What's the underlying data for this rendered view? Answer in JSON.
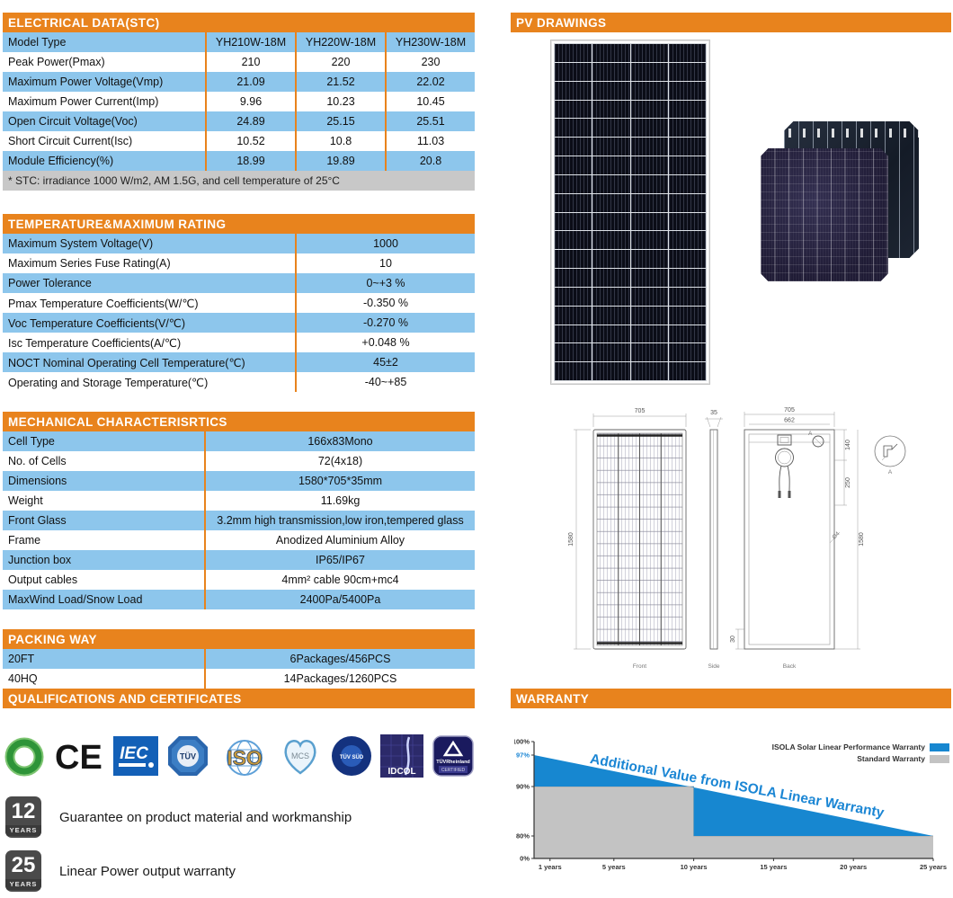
{
  "sections": {
    "electrical": {
      "title": "ELECTRICAL DATA(STC)",
      "rows": [
        [
          "Model Type",
          "YH210W-18M",
          "YH220W-18M",
          "YH230W-18M"
        ],
        [
          "Peak Power(Pmax)",
          "210",
          "220",
          "230"
        ],
        [
          "Maximum Power Voltage(Vmp)",
          "21.09",
          "21.52",
          "22.02"
        ],
        [
          "Maximum Power Current(Imp)",
          "9.96",
          "10.23",
          "10.45"
        ],
        [
          "Open Circuit Voltage(Voc)",
          "24.89",
          "25.15",
          "25.51"
        ],
        [
          "Short Circuit Current(Isc)",
          "10.52",
          "10.8",
          "11.03"
        ],
        [
          "Module Efficiency(%)",
          "18.99",
          "19.89",
          "20.8"
        ]
      ],
      "footnote": "* STC:  irradiance 1000 W/m2, AM 1.5G, and cell temperature of 25°C"
    },
    "temperature": {
      "title": "TEMPERATURE&MAXIMUM  RATING",
      "rows": [
        [
          "Maximum System Voltage(V)",
          "1000"
        ],
        [
          "Maximum Series Fuse Rating(A)",
          "10"
        ],
        [
          "Power Tolerance",
          "0~+3 %"
        ],
        [
          "Pmax Temperature Coefficients(W/℃)",
          "-0.350 %"
        ],
        [
          "Voc Temperature Coefficients(V/℃)",
          "-0.270 %"
        ],
        [
          "Isc Temperature Coefficients(A/℃)",
          "+0.048 %"
        ],
        [
          "NOCT Nominal Operating Cell Temperature(℃)",
          "45±2"
        ],
        [
          "Operating and Storage Temperature(℃)",
          "-40~+85"
        ]
      ]
    },
    "mechanical": {
      "title": "MECHANICAL  CHARACTERISRTICS",
      "rows": [
        [
          "Cell Type",
          "166x83Mono"
        ],
        [
          "No. of Cells",
          "72(4x18)"
        ],
        [
          "Dimensions",
          "1580*705*35mm"
        ],
        [
          "Weight",
          "11.69kg"
        ],
        [
          "Front Glass",
          "3.2mm high transmission,low iron,tempered glass"
        ],
        [
          "Frame",
          "Anodized Aluminium Alloy"
        ],
        [
          "Junction box",
          "IP65/IP67"
        ],
        [
          "Output cables",
          "4mm² cable 90cm+mc4"
        ],
        [
          "MaxWind Load/Snow Load",
          "2400Pa/5400Pa"
        ]
      ]
    },
    "packing": {
      "title": "PACKING WAY",
      "rows": [
        [
          "20FT",
          "6Packages/456PCS"
        ],
        [
          "40HQ",
          "14Packages/1260PCS"
        ]
      ]
    },
    "qualifications": {
      "title": "QUALIFICATIONS AND CERTIFICATES"
    },
    "pv_drawings": {
      "title": "PV DRAWINGS"
    },
    "warranty": {
      "title": "WARRANTY"
    }
  },
  "certificates": {
    "items": [
      {
        "name": "green-ring",
        "label": ""
      },
      {
        "name": "ce-mark",
        "label": "CE"
      },
      {
        "name": "iec",
        "label": "IEC"
      },
      {
        "name": "tuv",
        "label": "TÜV"
      },
      {
        "name": "iso",
        "label": "ISO"
      },
      {
        "name": "mcs",
        "label": "MCS"
      },
      {
        "name": "tuv-sud",
        "label": "TÜV SÜD"
      },
      {
        "name": "idcol",
        "label": "IDCOL"
      },
      {
        "name": "tuv-rheinland",
        "label": "TÜVRheinland",
        "sub": "CERTIFIED"
      }
    ]
  },
  "badges": [
    {
      "number": "12",
      "unit": "YEARS",
      "text": "Guarantee on product material and workmanship"
    },
    {
      "number": "25",
      "unit": "YEARS",
      "text": "Linear Power output warranty"
    }
  ],
  "drawings": {
    "front": {
      "width": "705",
      "height": "1580",
      "label": "Front"
    },
    "side": {
      "thickness": "35",
      "label": "Side"
    },
    "back": {
      "width": "705",
      "inner_width": "662",
      "jb_offset": "140",
      "cable_length": "250",
      "height": "1580",
      "bottom_offset": "30",
      "hole": "Ø4",
      "label": "Back",
      "detail": "A"
    }
  },
  "chart_data": {
    "type": "area",
    "title": "WARRANTY",
    "xlim": [
      0,
      25
    ],
    "ylim": [
      0,
      100
    ],
    "grid": false,
    "legend_position": "top-right",
    "x_ticks": [
      {
        "label": "1 years",
        "value": 1
      },
      {
        "label": "5 years",
        "value": 5
      },
      {
        "label": "10 years",
        "value": 10
      },
      {
        "label": "15 years",
        "value": 15
      },
      {
        "label": "20 years",
        "value": 20
      },
      {
        "label": "25 years",
        "value": 25
      }
    ],
    "y_ticks": [
      {
        "label": "100%",
        "value": 100
      },
      {
        "label": "97%",
        "value": 97,
        "accent": true
      },
      {
        "label": "90%",
        "value": 90
      },
      {
        "label": "80%",
        "value": 80
      },
      {
        "label": "0%",
        "value": 0
      }
    ],
    "series": [
      {
        "name": "ISOLA Solar Linear Performance Warranty",
        "color": "#1787d0",
        "points": [
          [
            0,
            97
          ],
          [
            25,
            80
          ]
        ]
      },
      {
        "name": "Standard Warranty",
        "color": "#c3c3c3",
        "points": [
          [
            0,
            90
          ],
          [
            10,
            90
          ],
          [
            10,
            80
          ],
          [
            25,
            80
          ]
        ]
      }
    ],
    "annotation": "Additional Value from ISOLA Linear Warranty"
  }
}
